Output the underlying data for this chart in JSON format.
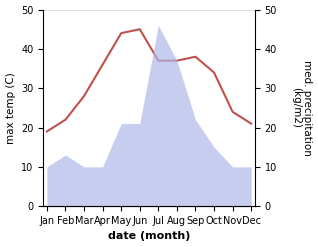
{
  "months": [
    "Jan",
    "Feb",
    "Mar",
    "Apr",
    "May",
    "Jun",
    "Jul",
    "Aug",
    "Sep",
    "Oct",
    "Nov",
    "Dec"
  ],
  "temperature": [
    19,
    22,
    28,
    36,
    44,
    45,
    37,
    37,
    38,
    34,
    24,
    21
  ],
  "rainfall": [
    10,
    13,
    10,
    10,
    21,
    21,
    46,
    37,
    22,
    15,
    10,
    10
  ],
  "temp_color": "#c0504d",
  "rain_color": "#b0b8e8",
  "temp_ylim": [
    0,
    50
  ],
  "rain_ylim": [
    0,
    50
  ],
  "xlabel": "date (month)",
  "ylabel_left": "max temp (C)",
  "ylabel_right": "med. precipitation\n(kg/m2)",
  "background_color": "#ffffff",
  "tick_fontsize": 7,
  "label_fontsize": 7.5,
  "xlabel_fontsize": 8
}
